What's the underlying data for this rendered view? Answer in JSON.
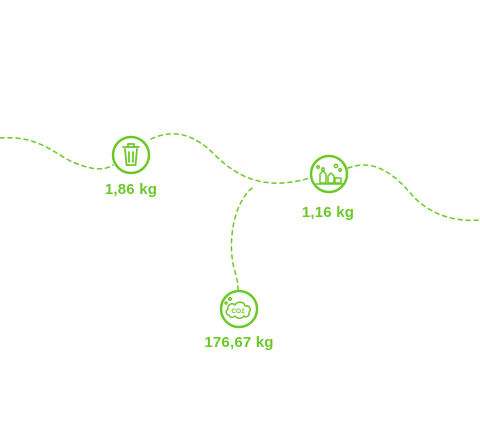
{
  "metrics": {
    "waste": {
      "icon": "trash-bin-icon",
      "value": "1,86 kg"
    },
    "household": {
      "icon": "household-cleaning-icon",
      "value": "1,16 kg"
    },
    "co2": {
      "icon": "co2-cloud-icon",
      "value": "176,67 kg",
      "icon_text": "CO2"
    }
  },
  "colors": {
    "accent": "#6cc829",
    "background": "#ffffff"
  }
}
